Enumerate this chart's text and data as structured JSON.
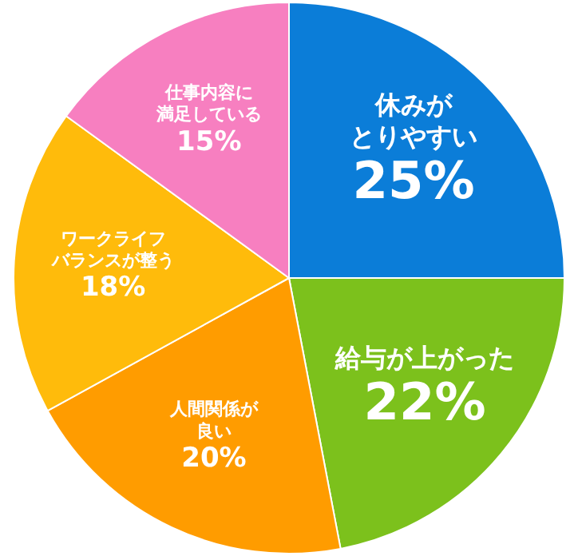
{
  "chart_data": {
    "type": "pie",
    "categories": [
      "休みがとりやすい",
      "給与が上がった",
      "人間関係が良い",
      "ワークライフバランスが整う",
      "仕事内容に満足している"
    ],
    "values": [
      25,
      22,
      20,
      18,
      15
    ],
    "value_labels": [
      "25%",
      "22%",
      "20%",
      "18%",
      "15%"
    ],
    "colors": [
      "#0b7dd8",
      "#7cc11c",
      "#ff9c00",
      "#ffbb0b",
      "#f77fc0"
    ],
    "legend": false
  }
}
